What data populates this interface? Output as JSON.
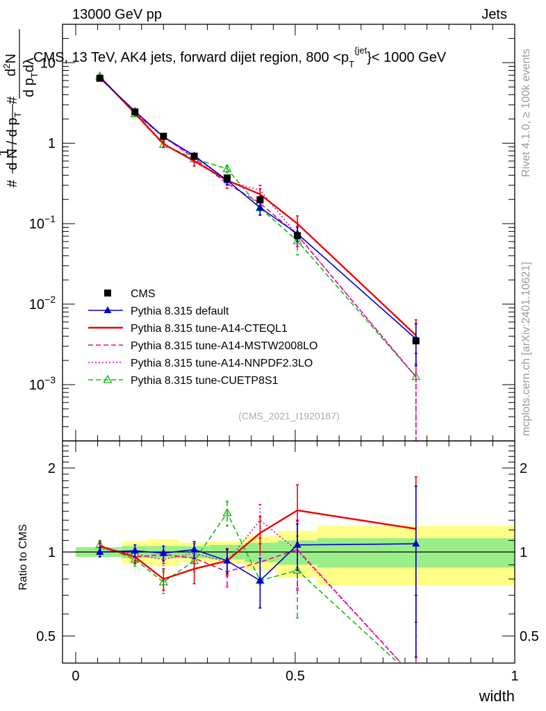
{
  "header": {
    "left": "13000 GeV pp",
    "right": "Jets"
  },
  "chart_data": [
    {
      "type": "line",
      "panel": "main",
      "title_parts": {
        "pre": "CMS, 13 TeV, AK4 jets, forward dijet region, 800 <p",
        "sub": "T",
        "sup": "{jet",
        "post": "}< 1000 GeV"
      },
      "xlabel": "width",
      "ylabel": "1/dN/dp_T # d²N/(dp_T dλ) #",
      "ylabel_parts": {
        "hash1": "#",
        "one": "1",
        "den": "d N / d p",
        "den_sub": "T",
        "hash2": "#",
        "num": "d",
        "num_sup": "2",
        "num2": "N",
        "den2": "d p",
        "den2_sub": "T",
        "den2_post": "dλ"
      },
      "yscale": "log",
      "ylim": [
        0.0002,
        30
      ],
      "xlim": [
        -0.03,
        1.0
      ],
      "yticks_major": [
        {
          "value": 0.001,
          "base": "10",
          "exp": "−3"
        },
        {
          "value": 0.01,
          "base": "10",
          "exp": "−2"
        },
        {
          "value": 0.1,
          "base": "10",
          "exp": "−1"
        },
        {
          "value": 1,
          "base": "1",
          "exp": ""
        },
        {
          "value": 10,
          "base": "10",
          "exp": ""
        }
      ],
      "watermark": "(CMS_2021_I1920187)",
      "right_label_top": "Rivet 4.1.0, ≥ 100k events",
      "right_label_bottom": "mcplots.cern.ch [arXiv:2401.10621]",
      "x": [
        0.055,
        0.135,
        0.2,
        0.27,
        0.345,
        0.42,
        0.505,
        0.775
      ],
      "x_edges": [
        0.0,
        0.105,
        0.165,
        0.235,
        0.305,
        0.385,
        0.46,
        0.55,
        1.0
      ],
      "data": {
        "name": "CMS",
        "values": [
          6.4,
          2.45,
          1.22,
          0.69,
          0.37,
          0.198,
          0.071,
          0.0035
        ],
        "err_up": [
          6.9,
          2.6,
          1.32,
          0.75,
          0.41,
          0.215,
          0.077,
          0.0039
        ],
        "err_dn": [
          6.0,
          2.3,
          1.12,
          0.63,
          0.33,
          0.18,
          0.065,
          0.0031
        ]
      },
      "series": [
        {
          "name": "Pythia 8.315 default",
          "color": "#0000cc",
          "style": "solid",
          "marker": "triangle-filled",
          "values": [
            6.45,
            2.5,
            1.2,
            0.7,
            0.345,
            0.158,
            0.075,
            0.0037
          ],
          "err": [
            0.3,
            0.12,
            0.08,
            0.05,
            0.04,
            0.03,
            0.015,
            0.002
          ]
        },
        {
          "name": "Pythia 8.315 tune-A14-CTEQL1",
          "color": "#ee0000",
          "style": "solid",
          "marker": "none",
          "values": [
            6.7,
            2.35,
            0.98,
            0.6,
            0.345,
            0.232,
            0.1,
            0.0041
          ],
          "err": [
            0.3,
            0.12,
            0.08,
            0.08,
            0.04,
            0.04,
            0.025,
            0.0023
          ]
        },
        {
          "name": "Pythia 8.315 tune-A14-MSTW2008LO",
          "color": "#ee0088",
          "style": "dashed",
          "marker": "none",
          "values": [
            6.7,
            2.35,
            1.2,
            0.65,
            0.315,
            0.18,
            0.072,
            0.00125
          ],
          "err": [
            0.3,
            0.12,
            0.08,
            0.06,
            0.04,
            0.03,
            0.02,
            0.0012
          ]
        },
        {
          "name": "Pythia 8.315 tune-A14-NNPDF2.3LO",
          "color": "#cc00cc",
          "style": "dotted",
          "marker": "none",
          "values": [
            6.6,
            2.4,
            1.18,
            0.68,
            0.34,
            0.26,
            0.072,
            0.00125
          ],
          "err": [
            0.3,
            0.12,
            0.08,
            0.06,
            0.04,
            0.04,
            0.02,
            0.0012
          ]
        },
        {
          "name": "Pythia 8.315 tune-CUETP8S1",
          "color": "#11bb11",
          "style": "dashed",
          "marker": "triangle-open",
          "values": [
            6.8,
            2.3,
            0.96,
            0.64,
            0.48,
            0.157,
            0.061,
            0.00125
          ],
          "err": [
            0.3,
            0.12,
            0.08,
            0.06,
            0.05,
            0.03,
            0.02,
            0.0012
          ]
        }
      ]
    },
    {
      "type": "line",
      "panel": "ratio",
      "ylabel": "Ratio to CMS",
      "yscale": "log",
      "ylim": [
        0.4,
        2.5
      ],
      "yticks_major": [
        0.5,
        1,
        2
      ],
      "ytick_labels": [
        "0.5",
        "1",
        "2"
      ],
      "xticks": [
        0,
        0.5,
        1
      ],
      "xtick_labels": [
        "0",
        "0.5",
        "1"
      ],
      "band_green": [
        0.04,
        0.05,
        0.05,
        0.05,
        0.06,
        0.08,
        0.1,
        0.12
      ],
      "band_yellow": [
        0.04,
        0.09,
        0.11,
        0.08,
        0.09,
        0.14,
        0.19,
        0.24
      ],
      "series": [
        {
          "name": "Pythia 8.315 default",
          "values": [
            1.0,
            1.01,
            0.99,
            1.02,
            0.93,
            0.79,
            1.06,
            1.07
          ],
          "err": [
            0.04,
            0.05,
            0.06,
            0.07,
            0.09,
            0.16,
            0.2,
            0.65
          ]
        },
        {
          "name": "Pythia 8.315 tune-A14-CTEQL1",
          "values": [
            1.05,
            0.96,
            0.8,
            0.87,
            0.93,
            1.17,
            1.41,
            1.21
          ],
          "err": [
            0.04,
            0.05,
            0.07,
            0.1,
            0.1,
            0.17,
            0.33,
            0.65
          ]
        },
        {
          "name": "Pythia 8.315 tune-A14-MSTW2008LO",
          "values": [
            1.05,
            0.96,
            0.98,
            0.95,
            0.85,
            0.92,
            1.02,
            0.35
          ],
          "err": [
            0.04,
            0.05,
            0.07,
            0.08,
            0.1,
            0.15,
            0.28,
            0.35
          ]
        },
        {
          "name": "Pythia 8.315 tune-A14-NNPDF2.3LO",
          "values": [
            1.03,
            0.98,
            0.94,
            0.99,
            0.92,
            1.3,
            1.01,
            0.35
          ],
          "err": [
            0.04,
            0.05,
            0.07,
            0.08,
            0.1,
            0.18,
            0.28,
            0.35
          ]
        },
        {
          "name": "Pythia 8.315 tune-CUETP8S1",
          "values": [
            1.06,
            0.94,
            0.78,
            0.93,
            1.38,
            0.79,
            0.86,
            0.35
          ],
          "err": [
            0.04,
            0.05,
            0.07,
            0.08,
            0.14,
            0.16,
            0.28,
            0.35
          ]
        }
      ]
    }
  ]
}
